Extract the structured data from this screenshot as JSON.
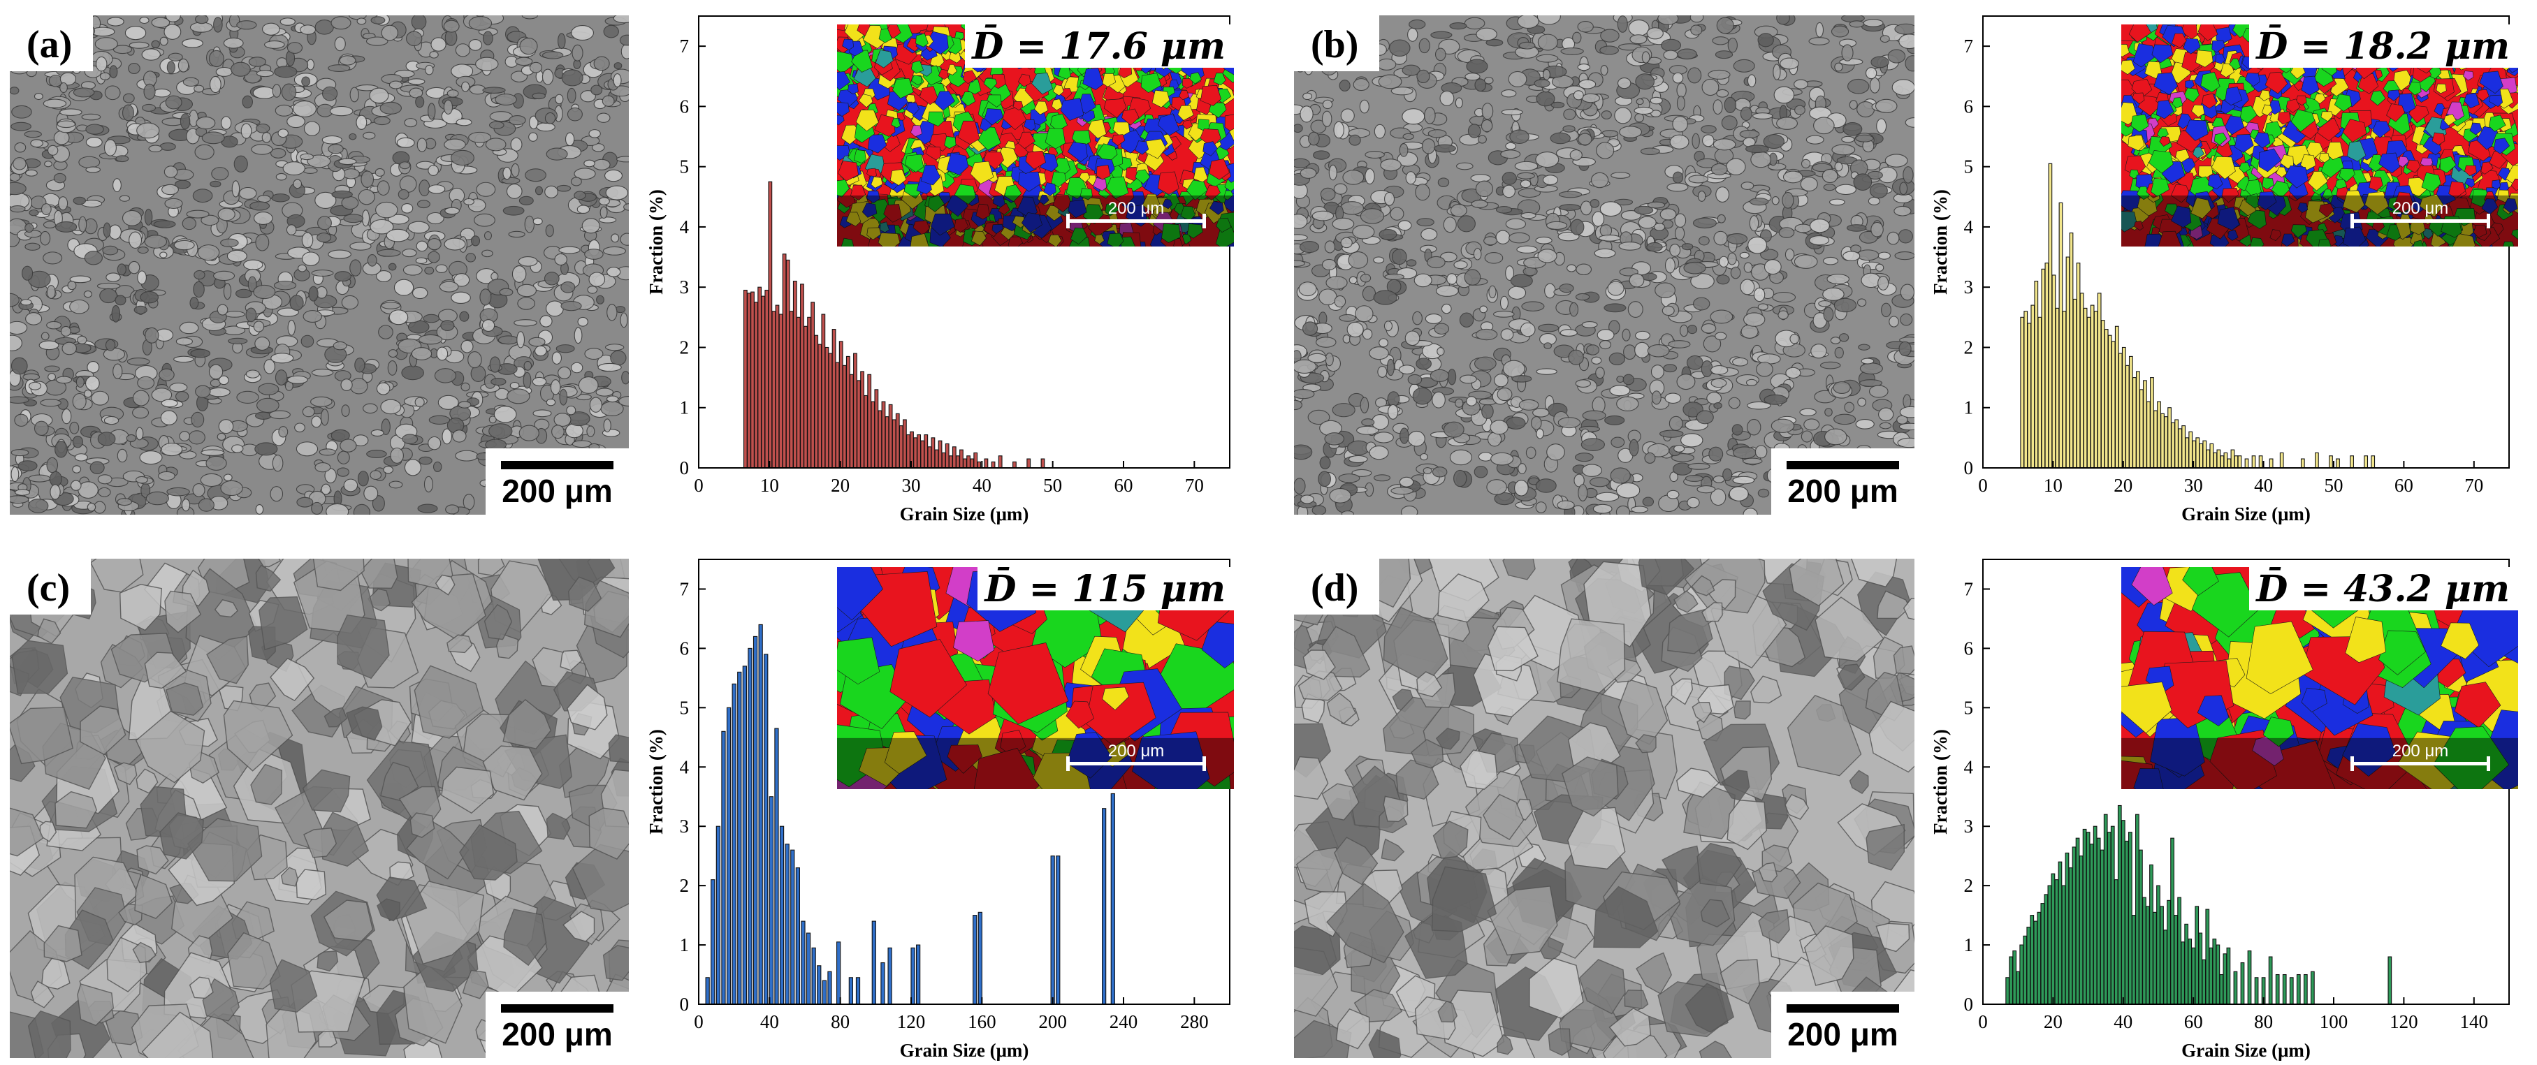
{
  "panels": [
    {
      "id": "a",
      "label": "(a)",
      "micrograph": {
        "scale_label": "200 μm",
        "tone": "#8a8a8a",
        "style": "fine"
      },
      "inset": {
        "mean_label": "D̄ = 17.6 μm",
        "scale_label": "200 μm",
        "style": "fine"
      },
      "chart_data": {
        "type": "bar",
        "title": "",
        "xlabel": "Grain Size (μm)",
        "ylabel": "Fraction (%)",
        "xlim": [
          0,
          75
        ],
        "ylim": [
          0,
          7.5
        ],
        "xticks": [
          0,
          10,
          20,
          30,
          40,
          50,
          60,
          70
        ],
        "yticks": [
          0,
          1,
          2,
          3,
          4,
          5,
          6,
          7
        ],
        "bin_width": 0.5,
        "bar_color": "#c0504d",
        "x": [
          6.6,
          7.1,
          7.6,
          8.1,
          8.6,
          9.1,
          9.6,
          10.1,
          10.6,
          11.1,
          11.6,
          12.1,
          12.6,
          13.1,
          13.6,
          14.1,
          14.6,
          15.1,
          15.6,
          16.1,
          16.6,
          17.1,
          17.6,
          18.1,
          18.6,
          19.1,
          19.6,
          20.1,
          20.6,
          21.1,
          21.6,
          22.1,
          22.6,
          23.1,
          23.6,
          24.1,
          24.6,
          25.1,
          25.6,
          26.1,
          26.6,
          27.1,
          27.6,
          28.1,
          28.6,
          29.1,
          29.6,
          30.1,
          30.6,
          31.1,
          31.6,
          32.1,
          32.6,
          33.1,
          33.6,
          34.1,
          34.6,
          35.1,
          35.6,
          36.1,
          36.6,
          37.1,
          37.6,
          38.1,
          38.6,
          39.1,
          39.6,
          40.6,
          41.6,
          42.6,
          44.6,
          46.6,
          48.6
        ],
        "values": [
          2.95,
          2.9,
          2.92,
          2.75,
          3.0,
          2.85,
          2.95,
          4.75,
          2.6,
          2.7,
          2.55,
          3.55,
          3.45,
          2.6,
          3.1,
          2.5,
          3.05,
          2.35,
          2.5,
          2.75,
          2.2,
          2.05,
          2.55,
          2.0,
          1.9,
          2.3,
          1.75,
          2.1,
          1.7,
          1.85,
          1.55,
          1.9,
          1.45,
          1.6,
          1.2,
          1.55,
          1.1,
          1.3,
          0.95,
          1.1,
          0.85,
          1.05,
          0.8,
          0.9,
          0.7,
          0.8,
          0.55,
          0.6,
          0.5,
          0.55,
          0.45,
          0.55,
          0.35,
          0.5,
          0.3,
          0.45,
          0.25,
          0.4,
          0.2,
          0.35,
          0.2,
          0.3,
          0.15,
          0.2,
          0.15,
          0.25,
          0.1,
          0.15,
          0.1,
          0.2,
          0.1,
          0.15,
          0.15
        ]
      }
    },
    {
      "id": "b",
      "label": "(b)",
      "micrograph": {
        "scale_label": "200 μm",
        "tone": "#8e8e8e",
        "style": "fine"
      },
      "inset": {
        "mean_label": "D̄ = 18.2 μm",
        "scale_label": "200 μm",
        "style": "fine"
      },
      "chart_data": {
        "type": "bar",
        "title": "",
        "xlabel": "Grain Size (μm)",
        "ylabel": "Fraction (%)",
        "xlim": [
          0,
          75
        ],
        "ylim": [
          0,
          7.5
        ],
        "xticks": [
          0,
          10,
          20,
          30,
          40,
          50,
          60,
          70
        ],
        "yticks": [
          0,
          1,
          2,
          3,
          4,
          5,
          6,
          7
        ],
        "bin_width": 0.5,
        "bar_color": "#f2e68c",
        "x": [
          5.6,
          6.1,
          6.6,
          7.1,
          7.6,
          8.1,
          8.6,
          9.1,
          9.6,
          10.1,
          10.6,
          11.1,
          11.6,
          12.1,
          12.6,
          13.1,
          13.6,
          14.1,
          14.6,
          15.1,
          15.6,
          16.1,
          16.6,
          17.1,
          17.6,
          18.1,
          18.6,
          19.1,
          19.6,
          20.1,
          20.6,
          21.1,
          21.6,
          22.1,
          22.6,
          23.1,
          23.6,
          24.1,
          24.6,
          25.1,
          25.6,
          26.1,
          26.6,
          27.1,
          27.6,
          28.1,
          28.6,
          29.1,
          29.6,
          30.1,
          30.6,
          31.1,
          31.6,
          32.1,
          32.6,
          33.1,
          33.6,
          34.1,
          34.6,
          35.1,
          35.6,
          36.1,
          36.6,
          37.6,
          38.6,
          39.6,
          41.1,
          42.6,
          45.6,
          47.6,
          49.6,
          50.6,
          52.6,
          54.6,
          55.6
        ],
        "values": [
          2.5,
          2.6,
          2.4,
          2.7,
          3.1,
          2.5,
          3.3,
          3.4,
          5.05,
          3.2,
          2.65,
          4.4,
          2.6,
          3.5,
          3.9,
          2.8,
          3.4,
          2.9,
          2.65,
          2.5,
          2.7,
          2.6,
          2.9,
          2.45,
          2.3,
          2.2,
          2.1,
          2.35,
          1.9,
          2.0,
          1.7,
          1.85,
          1.5,
          1.6,
          1.3,
          1.45,
          1.1,
          1.5,
          0.95,
          1.1,
          0.9,
          0.85,
          1.0,
          0.75,
          0.8,
          0.65,
          0.7,
          0.5,
          0.6,
          0.45,
          0.5,
          0.4,
          0.45,
          0.3,
          0.4,
          0.25,
          0.3,
          0.2,
          0.25,
          0.15,
          0.3,
          0.2,
          0.2,
          0.15,
          0.2,
          0.2,
          0.15,
          0.25,
          0.15,
          0.25,
          0.2,
          0.15,
          0.2,
          0.2,
          0.2
        ]
      }
    },
    {
      "id": "c",
      "label": "(c)",
      "micrograph": {
        "scale_label": "200 μm",
        "tone": "#a8a8a8",
        "style": "coarse"
      },
      "inset": {
        "mean_label": "D̄ = 115 μm",
        "scale_label": "200 μm",
        "style": "coarse"
      },
      "chart_data": {
        "type": "bar",
        "title": "",
        "xlabel": "Grain Size (μm)",
        "ylabel": "Fraction (%)",
        "xlim": [
          0,
          300
        ],
        "ylim": [
          0,
          7.5
        ],
        "xticks": [
          0,
          40,
          80,
          120,
          160,
          200,
          240,
          280
        ],
        "yticks": [
          0,
          1,
          2,
          3,
          4,
          5,
          6,
          7
        ],
        "bin_width": 2.2,
        "bar_color": "#2f6fc9",
        "x": [
          5,
          8,
          11,
          14,
          17,
          20,
          23,
          26,
          29,
          32,
          35,
          38,
          41,
          44,
          47,
          50,
          53,
          56,
          59,
          62,
          65,
          68,
          71,
          74,
          79,
          86,
          90,
          99,
          104,
          108,
          121,
          124,
          156,
          159,
          200,
          203,
          229,
          234
        ],
        "values": [
          0.45,
          2.1,
          3.0,
          4.6,
          5.0,
          5.4,
          5.6,
          5.7,
          6.0,
          6.2,
          6.4,
          5.9,
          3.5,
          4.65,
          3.0,
          2.7,
          2.6,
          2.3,
          1.4,
          1.2,
          0.95,
          0.65,
          0.4,
          0.55,
          1.05,
          0.45,
          0.45,
          1.4,
          0.7,
          0.95,
          0.95,
          1.0,
          1.5,
          1.55,
          2.5,
          2.5,
          3.3,
          3.55
        ]
      }
    },
    {
      "id": "d",
      "label": "(d)",
      "micrograph": {
        "scale_label": "200 μm",
        "tone": "#b4b4b4",
        "style": "coarse"
      },
      "inset": {
        "mean_label": "D̄ = 43.2 μm",
        "scale_label": "200 μm",
        "style": "coarse"
      },
      "chart_data": {
        "type": "bar",
        "title": "",
        "xlabel": "Grain Size (μm)",
        "ylabel": "Fraction (%)",
        "xlim": [
          0,
          150
        ],
        "ylim": [
          0,
          7.5
        ],
        "xticks": [
          0,
          20,
          40,
          60,
          80,
          100,
          120,
          140
        ],
        "yticks": [
          0,
          1,
          2,
          3,
          4,
          5,
          6,
          7
        ],
        "bin_width": 1.0,
        "bar_color": "#2e9a59",
        "x": [
          7,
          8,
          9,
          10,
          11,
          12,
          13,
          14,
          15,
          16,
          17,
          18,
          19,
          20,
          21,
          22,
          23,
          24,
          25,
          26,
          27,
          28,
          29,
          30,
          31,
          32,
          33,
          34,
          35,
          36,
          37,
          38,
          39,
          40,
          41,
          42,
          43,
          44,
          45,
          46,
          47,
          48,
          49,
          50,
          51,
          52,
          53,
          54,
          55,
          56,
          57,
          58,
          59,
          60,
          61,
          62,
          63,
          64,
          65,
          66,
          67,
          68,
          69,
          70,
          72,
          74,
          76,
          78,
          80,
          82,
          84,
          86,
          88,
          90,
          92,
          94,
          116
        ],
        "values": [
          0.45,
          0.8,
          0.9,
          0.55,
          1.0,
          1.15,
          1.3,
          1.5,
          1.4,
          1.55,
          1.7,
          1.85,
          2.0,
          2.2,
          2.1,
          2.4,
          2.0,
          2.55,
          2.3,
          2.65,
          2.8,
          2.5,
          2.95,
          2.9,
          2.7,
          3.0,
          2.8,
          2.6,
          3.2,
          2.9,
          3.0,
          2.1,
          3.35,
          3.1,
          2.75,
          2.9,
          1.5,
          3.2,
          2.6,
          1.8,
          1.65,
          2.35,
          1.55,
          2.0,
          1.65,
          1.25,
          1.75,
          2.8,
          1.5,
          1.8,
          1.05,
          1.35,
          1.1,
          0.95,
          1.65,
          1.2,
          0.75,
          1.6,
          0.95,
          1.1,
          1.0,
          0.5,
          0.85,
          0.95,
          0.55,
          0.7,
          0.9,
          0.45,
          0.45,
          0.8,
          0.5,
          0.5,
          0.45,
          0.5,
          0.5,
          0.55,
          0.8
        ]
      }
    }
  ],
  "inset_colors": [
    "#e8141e",
    "#1a2ee0",
    "#19d61e",
    "#f2e21a",
    "#2a9d9a",
    "#d23ec8"
  ]
}
